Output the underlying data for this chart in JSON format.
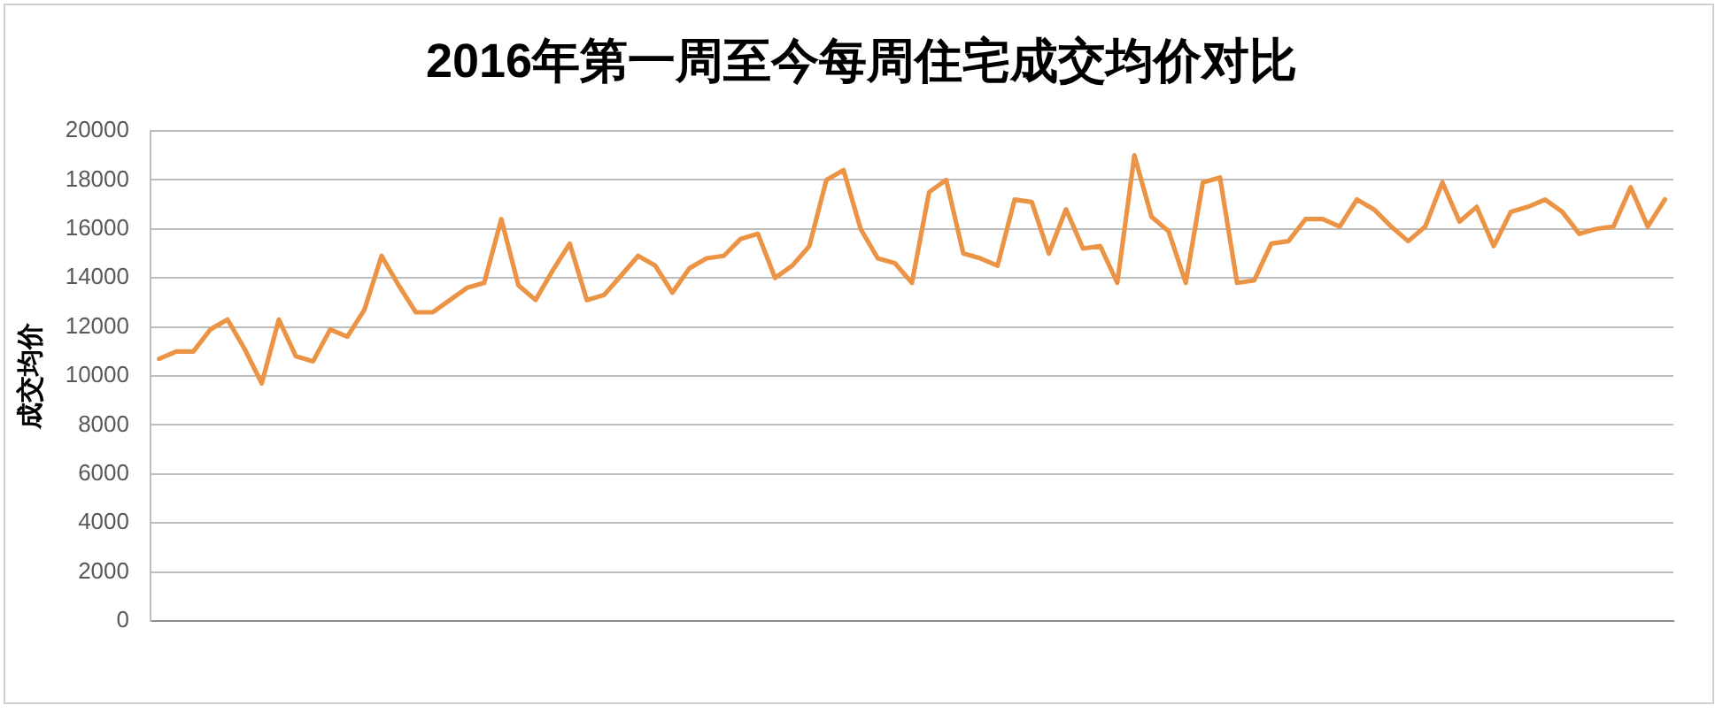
{
  "chart_data": {
    "type": "line",
    "title": "2016年第一周至今每周住宅成交均价对比",
    "ylabel": "成交均价",
    "categories": [
      null,
      null,
      null,
      null,
      null,
      null,
      null,
      null,
      null,
      null,
      null,
      null,
      null,
      null,
      null,
      null,
      null,
      null,
      null,
      null,
      null,
      null,
      null,
      null,
      null,
      null,
      null,
      null,
      null,
      null,
      null,
      null,
      null,
      null,
      null,
      null,
      null,
      null,
      null,
      null,
      null,
      null,
      null,
      null,
      null,
      null,
      null,
      null,
      null,
      null,
      null,
      null,
      null,
      null,
      null,
      null,
      null,
      null,
      null,
      null,
      null,
      null,
      null,
      null,
      null,
      null,
      null,
      null,
      null,
      null,
      null,
      null,
      null,
      null,
      null,
      null,
      null,
      null,
      null,
      null,
      null,
      null,
      null,
      null,
      null,
      null,
      null,
      null,
      null
    ],
    "series": [
      {
        "color": "#eb9446",
        "values": [
          10700,
          11000,
          11000,
          11900,
          12300,
          11100,
          9700,
          12300,
          10800,
          10600,
          11900,
          11600,
          12700,
          14900,
          13700,
          12600,
          12600,
          13100,
          13600,
          13800,
          16400,
          13700,
          13100,
          14300,
          15400,
          13100,
          13300,
          14100,
          14900,
          14500,
          13400,
          14400,
          14800,
          14900,
          15600,
          15800,
          14000,
          14500,
          15300,
          18000,
          18400,
          16000,
          14800,
          14600,
          13800,
          17500,
          18000,
          15000,
          14800,
          14500,
          17200,
          17100,
          15000,
          16800,
          15200,
          15300,
          13800,
          19000,
          16500,
          15900,
          13800,
          17900,
          18100,
          13800,
          13900,
          15400,
          15500,
          16400,
          16400,
          16100,
          17200,
          16800,
          16100,
          15500,
          16100,
          17900,
          16300,
          16900,
          15300,
          16700,
          16900,
          17200,
          16700,
          15800,
          16000,
          16100,
          17700,
          16100,
          17200
        ]
      }
    ],
    "ylim": [
      0,
      20000
    ],
    "yticks": [
      0,
      2000,
      4000,
      6000,
      8000,
      10000,
      12000,
      14000,
      16000,
      18000,
      20000
    ],
    "grid": "y",
    "legend": false,
    "marker": "none",
    "line_style": "solid",
    "tick_labels": "y"
  }
}
